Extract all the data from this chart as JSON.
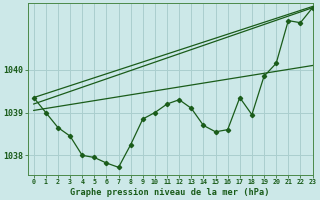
{
  "title": "Graphe pression niveau de la mer (hPa)",
  "bg_color": "#cce8e8",
  "grid_color": "#aacece",
  "line_color": "#1a5c1a",
  "xlim": [
    -0.5,
    23
  ],
  "ylim": [
    1037.55,
    1041.55
  ],
  "yticks": [
    1038,
    1039,
    1040
  ],
  "xticks": [
    0,
    1,
    2,
    3,
    4,
    5,
    6,
    7,
    8,
    9,
    10,
    11,
    12,
    13,
    14,
    15,
    16,
    17,
    18,
    19,
    20,
    21,
    22,
    23
  ],
  "main_line_x": [
    0,
    1,
    2,
    3,
    4,
    5,
    6,
    7,
    8,
    9,
    10,
    11,
    12,
    13,
    14,
    15,
    16,
    17,
    18,
    19,
    20,
    21,
    22,
    23
  ],
  "main_line_y": [
    1039.35,
    1039.0,
    1038.65,
    1038.45,
    1038.0,
    1037.95,
    1037.82,
    1037.72,
    1038.25,
    1038.85,
    1039.0,
    1039.2,
    1039.3,
    1039.1,
    1038.7,
    1038.55,
    1038.6,
    1039.35,
    1038.95,
    1039.85,
    1040.15,
    1041.15,
    1041.1,
    1041.45
  ],
  "trend_line1_x": [
    0,
    23
  ],
  "trend_line1_y": [
    1039.05,
    1040.1
  ],
  "trend_line2_x": [
    0,
    23
  ],
  "trend_line2_y": [
    1039.2,
    1041.45
  ],
  "trend_line3_x": [
    0,
    23
  ],
  "trend_line3_y": [
    1039.35,
    1041.48
  ]
}
